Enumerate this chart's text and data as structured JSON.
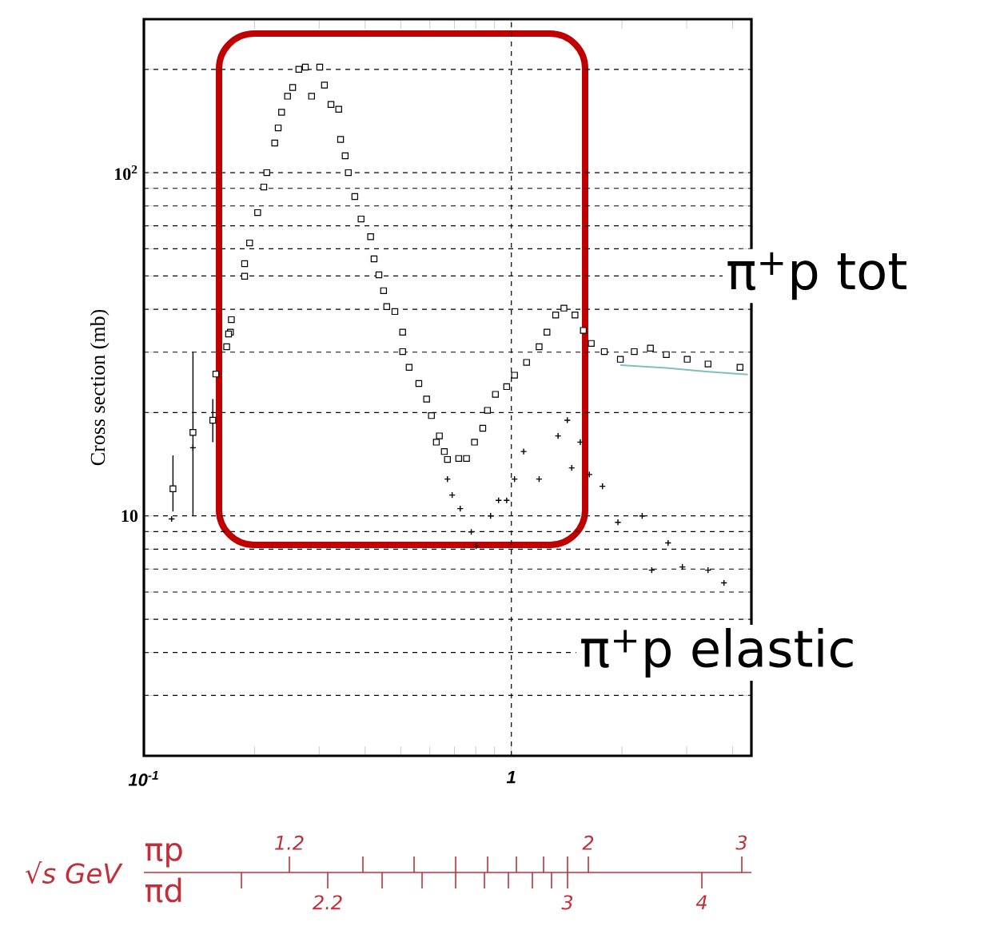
{
  "chart_data": {
    "type": "scatter",
    "ylabel": "Cross section (mb)",
    "log": "xy",
    "grid": "y",
    "xlim": [
      0.1,
      4.5
    ],
    "ylim": [
      2,
      280
    ],
    "xticks": [
      {
        "value": 0.1,
        "label": "10$^{-1}$"
      },
      {
        "value": 0.2,
        "label": null
      },
      {
        "value": 0.3,
        "label": null
      },
      {
        "value": 0.4,
        "label": null
      },
      {
        "value": 0.5,
        "label": null
      },
      {
        "value": 0.6,
        "label": null
      },
      {
        "value": 0.7,
        "label": null
      },
      {
        "value": 0.8,
        "label": null
      },
      {
        "value": 0.9,
        "label": null
      },
      {
        "value": 1,
        "label": "1"
      },
      {
        "value": 2,
        "label": null
      },
      {
        "value": 3,
        "label": null
      },
      {
        "value": 4,
        "label": null
      }
    ],
    "yticks": [
      {
        "value": 2,
        "label": null
      },
      {
        "value": 3,
        "label": null
      },
      {
        "value": 4,
        "label": null
      },
      {
        "value": 5,
        "label": null
      },
      {
        "value": 6,
        "label": null
      },
      {
        "value": 7,
        "label": null
      },
      {
        "value": 8,
        "label": null
      },
      {
        "value": 9,
        "label": null
      },
      {
        "value": 10,
        "label": "10"
      },
      {
        "value": 20,
        "label": null
      },
      {
        "value": 30,
        "label": null
      },
      {
        "value": 40,
        "label": null
      },
      {
        "value": 50,
        "label": null
      },
      {
        "value": 60,
        "label": null
      },
      {
        "value": 70,
        "label": null
      },
      {
        "value": 80,
        "label": null
      },
      {
        "value": 90,
        "label": null
      },
      {
        "value": 100,
        "label": "10$^{2}$"
      },
      {
        "value": 200,
        "label": null
      }
    ],
    "annotations": [
      "√s GeV",
      "πp",
      "πd",
      "1.2",
      "2",
      "3",
      "2.2",
      "3",
      "4"
    ],
    "ref_lines": [
      {
        "axis": "x",
        "value": 1,
        "line_style": "dashed",
        "color": "#000000"
      }
    ],
    "series": [
      {
        "name": "π$^{+}$p tot",
        "color": "#000000",
        "marker": "square",
        "x": [
          0.12,
          0.136,
          0.154,
          0.157,
          0.168,
          0.172,
          0.173,
          0.17,
          0.188,
          0.188,
          0.194,
          0.204,
          0.212,
          0.216,
          0.227,
          0.232,
          0.237,
          0.246,
          0.254,
          0.264,
          0.275,
          0.286,
          0.301,
          0.31,
          0.323,
          0.339,
          0.343,
          0.353,
          0.36,
          0.375,
          0.39,
          0.414,
          0.423,
          0.436,
          0.449,
          0.458,
          0.482,
          0.506,
          0.506,
          0.527,
          0.56,
          0.588,
          0.606,
          0.637,
          0.657,
          0.625,
          0.67,
          0.719,
          0.755,
          0.794,
          0.836,
          0.861,
          0.905,
          0.971,
          1.02,
          1.1,
          1.19,
          1.25,
          1.32,
          1.39,
          1.49,
          1.57,
          1.65,
          1.79,
          1.98,
          2.16,
          2.39,
          2.64,
          3.01,
          3.43,
          4.19
        ],
        "values": [
          12.0,
          17.5,
          19.0,
          25.9,
          31.1,
          34.3,
          37.3,
          33.9,
          49.9,
          54.3,
          62.4,
          76.5,
          90.8,
          100,
          122,
          135,
          150,
          167,
          177,
          200,
          203,
          167,
          203,
          180,
          158,
          153,
          125,
          112,
          100,
          85.2,
          73.3,
          65.1,
          56.1,
          50.4,
          45.3,
          40.7,
          39.4,
          34.3,
          30.1,
          27.1,
          24.3,
          21.9,
          19.6,
          17.1,
          15.4,
          16.4,
          14.6,
          14.7,
          14.7,
          16.4,
          18.0,
          20.3,
          22.6,
          23.8,
          25.7,
          28.0,
          31.1,
          34.3,
          38.5,
          40.3,
          38.5,
          34.7,
          31.8,
          30.1,
          28.6,
          30.1,
          30.8,
          29.5,
          28.6,
          27.7,
          27.1
        ],
        "errors": [
          [
            10.3,
            15
          ],
          [
            10,
            30
          ],
          [
            16.4,
            21.9
          ],
          null,
          null,
          null,
          null,
          null,
          null,
          null,
          null,
          null,
          null,
          null,
          null,
          null,
          null,
          null,
          null,
          null,
          null,
          null,
          null,
          null,
          null,
          null,
          null,
          null,
          null,
          null,
          null,
          null,
          null,
          null,
          null,
          null,
          null,
          null,
          null,
          null,
          null,
          null,
          null,
          null,
          null,
          null,
          null,
          null,
          null,
          null,
          null,
          null,
          null,
          null,
          null,
          null,
          null,
          null,
          null,
          null,
          null,
          null,
          null,
          null,
          null,
          null,
          null,
          null,
          null,
          null,
          null
        ]
      },
      {
        "name": "π$^{+}$p elastic",
        "color": "#000000",
        "marker": "cross",
        "x": [
          0.119,
          0.136,
          0.67,
          0.69,
          0.726,
          0.778,
          0.802,
          0.878,
          0.923,
          0.971,
          1.02,
          1.08,
          1.19,
          1.34,
          1.42,
          1.46,
          1.54,
          1.63,
          1.77,
          1.95,
          2.27,
          2.41,
          2.67,
          2.92,
          3.43,
          3.79
        ],
        "values": [
          9.8,
          15.8,
          12.8,
          11.5,
          10.5,
          8.98,
          8.16,
          10,
          11.1,
          11.1,
          12.8,
          15.4,
          12.8,
          17.1,
          19.0,
          13.8,
          16.4,
          13.2,
          12.2,
          9.58,
          10,
          6.95,
          8.34,
          7.1,
          6.95,
          6.38
        ]
      },
      {
        "type": "line",
        "color": "#7fbfbf",
        "marker": "none",
        "x": [
          1.98,
          2.64,
          3.43,
          4.4
        ],
        "values": [
          27.5,
          27.0,
          26.3,
          25.8
        ]
      }
    ]
  }
}
